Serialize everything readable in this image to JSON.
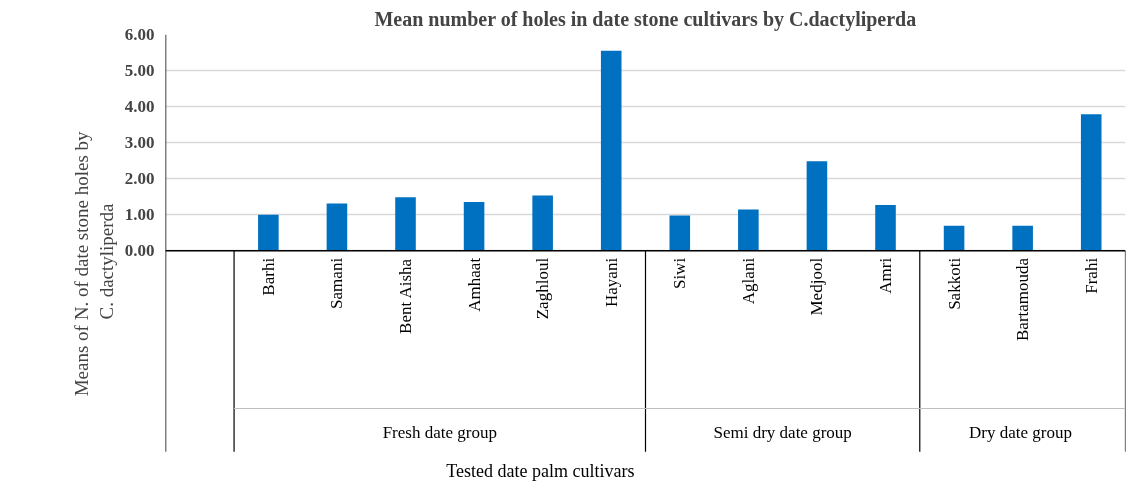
{
  "chart_data": {
    "type": "bar",
    "title": "Mean number of holes in date stone cultivars by C.dactyliperda",
    "ylabel": "Means of  N. of date stone holes by C. dactyliperda",
    "categories": [
      null,
      "Barhi",
      "Samani",
      "Bent Aisha",
      "Amhaat",
      "Zaghloul",
      "Hayani",
      "Siwi",
      "Aglani",
      "Medjool",
      "Amri",
      "Sakkoti",
      "Bartamouda",
      "Frahi"
    ],
    "values": [
      null,
      1.0,
      1.31,
      1.48,
      1.35,
      1.53,
      5.55,
      0.98,
      1.14,
      2.48,
      1.27,
      0.69,
      0.69,
      3.79
    ],
    "color": "#0070c0",
    "ylim": [
      0,
      6
    ],
    "yticks": [
      {
        "value": 0,
        "label": "0.00"
      },
      {
        "value": 1,
        "label": "1.00"
      },
      {
        "value": 2,
        "label": "2.00"
      },
      {
        "value": 3,
        "label": "3.00"
      },
      {
        "value": 4,
        "label": "4.00"
      },
      {
        "value": 5,
        "label": "5.00"
      },
      {
        "value": 6,
        "label": "6.00"
      }
    ],
    "grid": "y",
    "annotations": [
      "Fresh date group",
      "Semi dry date group",
      "Dry date  group",
      "Tested  date palm cultivars"
    ]
  }
}
